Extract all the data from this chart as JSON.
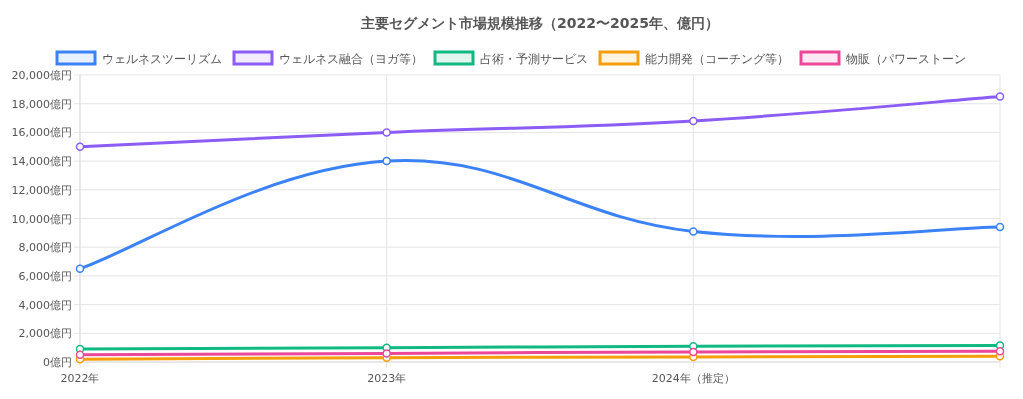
{
  "chart_data": {
    "type": "line",
    "title": "主要セグメント市場規模推移（2022〜2025年、億円）",
    "categories": [
      "2022年",
      "2023年",
      "2024年（推定）",
      null
    ],
    "series": [
      {
        "name": "ウェルネスツーリズム",
        "color": "#3b82f6",
        "values": [
          6500,
          14000,
          9100,
          9400
        ]
      },
      {
        "name": "ウェルネス融合（ヨガ等）",
        "color": "#8b5cf6",
        "values": [
          15000,
          16000,
          16800,
          18500
        ]
      },
      {
        "name": "占術・予測サービス",
        "color": "#10b981",
        "values": [
          900,
          1000,
          1100,
          1150
        ]
      },
      {
        "name": "能力開発（コーチング等）",
        "color": "#f59e0b",
        "values": [
          200,
          300,
          350,
          400
        ]
      },
      {
        "name": "物販（パワーストーン",
        "color": "#ec4899",
        "values": [
          500,
          600,
          700,
          750
        ]
      }
    ],
    "ylim": [
      0,
      20000
    ],
    "yticks": [
      {
        "value": 0,
        "label": "0億円"
      },
      {
        "value": 2000,
        "label": "2,000億円"
      },
      {
        "value": 4000,
        "label": "4,000億円"
      },
      {
        "value": 6000,
        "label": "6,000億円"
      },
      {
        "value": 8000,
        "label": "8,000億円"
      },
      {
        "value": 10000,
        "label": "10,000億円"
      },
      {
        "value": 12000,
        "label": "12,000億円"
      },
      {
        "value": 14000,
        "label": "14,000億円"
      },
      {
        "value": 16000,
        "label": "16,000億円"
      },
      {
        "value": 18000,
        "label": "18,000億円"
      },
      {
        "value": 20000,
        "label": "20,000億円"
      }
    ],
    "grid": true,
    "legend": "top",
    "marker": "circle",
    "line_style": "solid"
  }
}
